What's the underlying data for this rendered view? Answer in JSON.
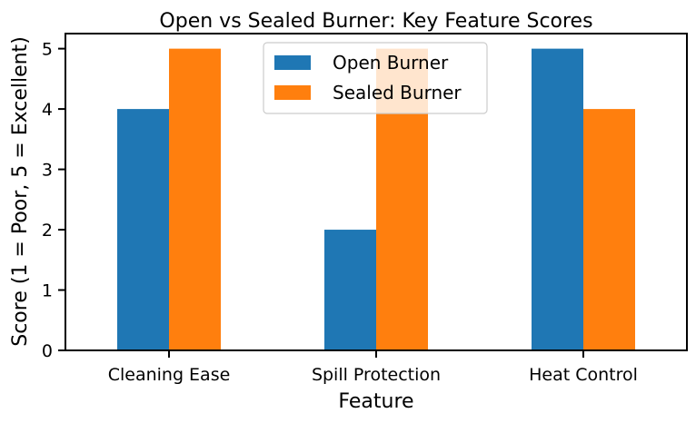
{
  "chart_data": {
    "type": "bar",
    "title": "Open vs Sealed Burner: Key Feature Scores",
    "xlabel": "Feature",
    "ylabel": "Score (1 = Poor, 5 = Excellent)",
    "categories": [
      "Cleaning Ease",
      "Spill Protection",
      "Heat Control"
    ],
    "series": [
      {
        "name": "Open Burner",
        "values": [
          4,
          2,
          5
        ],
        "color": "#1f77b4"
      },
      {
        "name": "Sealed Burner",
        "values": [
          5,
          5,
          4
        ],
        "color": "#ff7f0e"
      }
    ],
    "ylim": [
      0,
      5.25
    ],
    "yticks": [
      0,
      1,
      2,
      3,
      4,
      5
    ],
    "grid": false,
    "legend": "upper center"
  }
}
